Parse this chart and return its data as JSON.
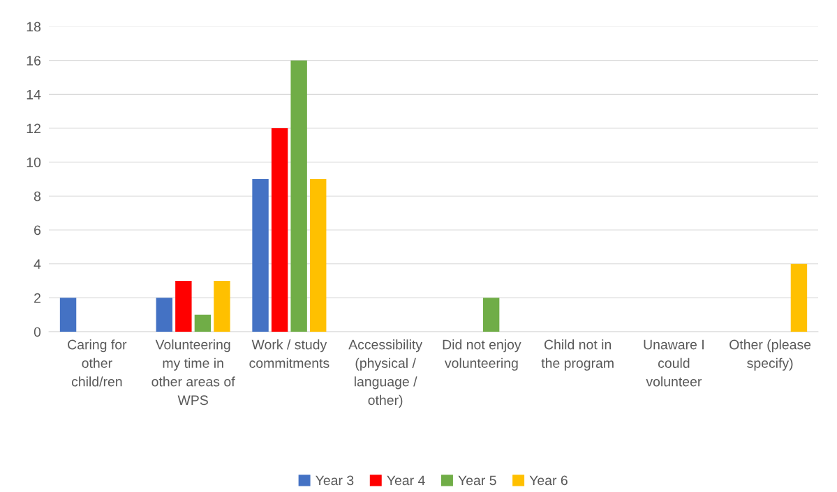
{
  "chart_data": {
    "type": "bar",
    "categories": [
      "Caring for\nother\nchild/ren",
      "Volunteering\nmy time in\nother areas of\nWPS",
      "Work / study\ncommitments",
      "Accessibility\n(physical /\nlanguage /\nother)",
      "Did not enjoy\nvolunteering",
      "Child not in\nthe program",
      "Unaware I\ncould\nvolunteer",
      "Other (please\nspecify)"
    ],
    "series": [
      {
        "name": "Year 3",
        "color": "#4472c4",
        "values": [
          2,
          2,
          9,
          0,
          0,
          0,
          0,
          0
        ]
      },
      {
        "name": "Year 4",
        "color": "#ff0000",
        "values": [
          0,
          3,
          12,
          0,
          0,
          0,
          0,
          0
        ]
      },
      {
        "name": "Year 5",
        "color": "#70ad47",
        "values": [
          0,
          1,
          16,
          0,
          2,
          0,
          0,
          0
        ]
      },
      {
        "name": "Year 6",
        "color": "#ffc000",
        "values": [
          0,
          3,
          9,
          0,
          0,
          0,
          0,
          4
        ]
      }
    ],
    "ylim": [
      0,
      18
    ],
    "yticks": [
      0,
      2,
      4,
      6,
      8,
      10,
      12,
      14,
      16,
      18
    ],
    "grid": "y",
    "legend": "bottom"
  }
}
